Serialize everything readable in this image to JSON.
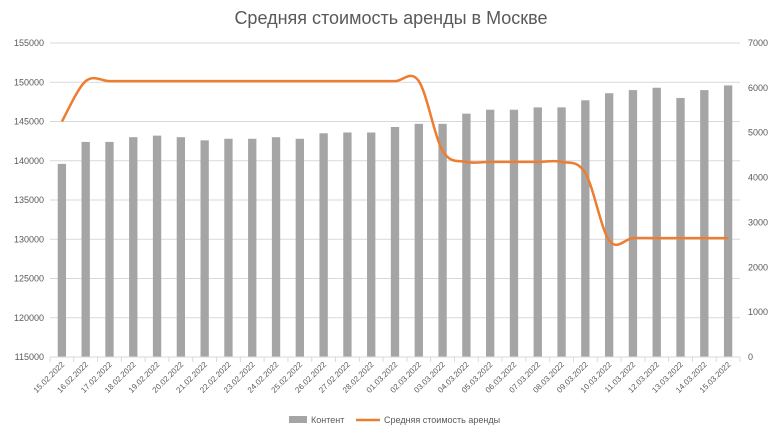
{
  "chart_data": {
    "type": "bar+line",
    "title": "Средняя стоимость аренды в Москве",
    "categories": [
      "15.02.2022",
      "16.02.2022",
      "17.02.2022",
      "18.02.2022",
      "19.02.2022",
      "20.02.2022",
      "21.02.2022",
      "22.02.2022",
      "23.02.2022",
      "24.02.2022",
      "25.02.2022",
      "26.02.2022",
      "27.02.2022",
      "28.02.2022",
      "01.03.2022",
      "02.03.2022",
      "03.03.2022",
      "04.03.2022",
      "05.03.2022",
      "06.03.2022",
      "07.03.2022",
      "08.03.2022",
      "09.03.2022",
      "10.03.2022",
      "11.03.2022",
      "12.03.2022",
      "13.03.2022",
      "14.03.2022",
      "15.03.2022"
    ],
    "series": [
      {
        "name": "Контент",
        "type": "bar",
        "axis": "left",
        "color": "#a5a5a5",
        "values": [
          139600,
          142400,
          142400,
          143000,
          143200,
          143000,
          142600,
          142800,
          142800,
          143000,
          142800,
          143500,
          143600,
          143600,
          144300,
          144700,
          144700,
          146000,
          146500,
          146500,
          146800,
          146800,
          147700,
          148600,
          149000,
          149300,
          148000,
          149000,
          149600
        ]
      },
      {
        "name": "Средняя стоимость аренды",
        "type": "line",
        "axis": "right",
        "color": "#ed7d31",
        "values": [
          5250,
          6150,
          6150,
          6150,
          6150,
          6150,
          6150,
          6150,
          6150,
          6150,
          6150,
          6150,
          6150,
          6150,
          6150,
          6150,
          4600,
          4350,
          4350,
          4350,
          4350,
          4350,
          4100,
          2600,
          2650,
          2650,
          2650,
          2650,
          2650
        ]
      }
    ],
    "y_left": {
      "min": 115000,
      "max": 155000,
      "ticks": [
        "115000",
        "120000",
        "125000",
        "130000",
        "135000",
        "140000",
        "145000",
        "150000",
        "155000"
      ]
    },
    "y_right": {
      "min": 0,
      "max": 7000,
      "ticks": [
        "0",
        "1000",
        "2000",
        "3000",
        "4000",
        "5000",
        "6000",
        "7000"
      ]
    },
    "grid": true,
    "legend_position": "bottom"
  }
}
